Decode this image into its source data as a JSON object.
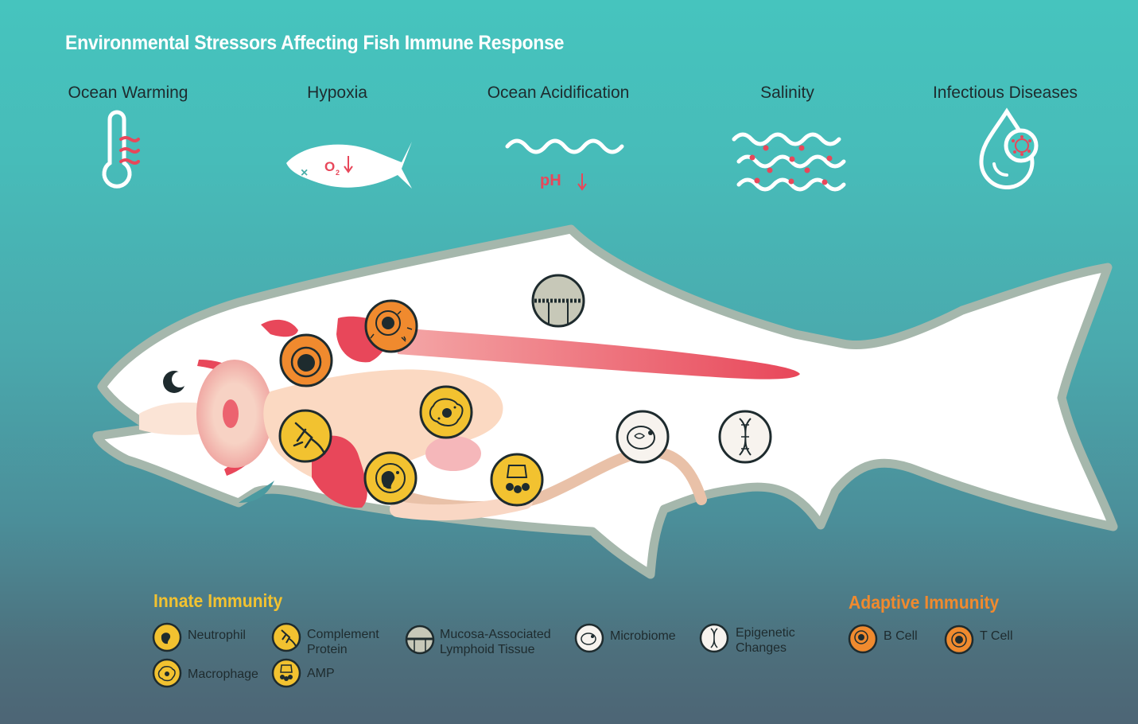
{
  "title": "Environmental Stressors Affecting Fish Immune Response",
  "stressors": [
    {
      "label": "Ocean Warming",
      "icon": "thermometer-icon"
    },
    {
      "label": "Hypoxia",
      "icon": "fish-oxygen-icon",
      "symbol": "O2"
    },
    {
      "label": "Ocean Acidification",
      "icon": "wave-ph-icon",
      "symbol": "pH"
    },
    {
      "label": "Salinity",
      "icon": "salt-waves-icon"
    },
    {
      "label": "Infectious Diseases",
      "icon": "pathogen-drop-icon"
    }
  ],
  "legend": {
    "innate_heading": "Innate Immunity",
    "adaptive_heading": "Adaptive Immunity",
    "items": {
      "neutrophil": "Neutrophil",
      "complement": "Complement\nProtein",
      "macrophage": "Macrophage",
      "amp": "AMP",
      "malt": "Mucosa-Associated\nLymphoid Tissue",
      "microbiome": "Microbiome",
      "epigenetic": "Epigenetic\nChanges",
      "bcell": "B Cell",
      "tcell": "T Cell"
    }
  },
  "colors": {
    "innate": "#f2c230",
    "adaptive": "#f08a2e",
    "accent_red": "#e8475a",
    "fish_outline": "#a5b7ac",
    "text_dark": "#1e2b2e"
  }
}
